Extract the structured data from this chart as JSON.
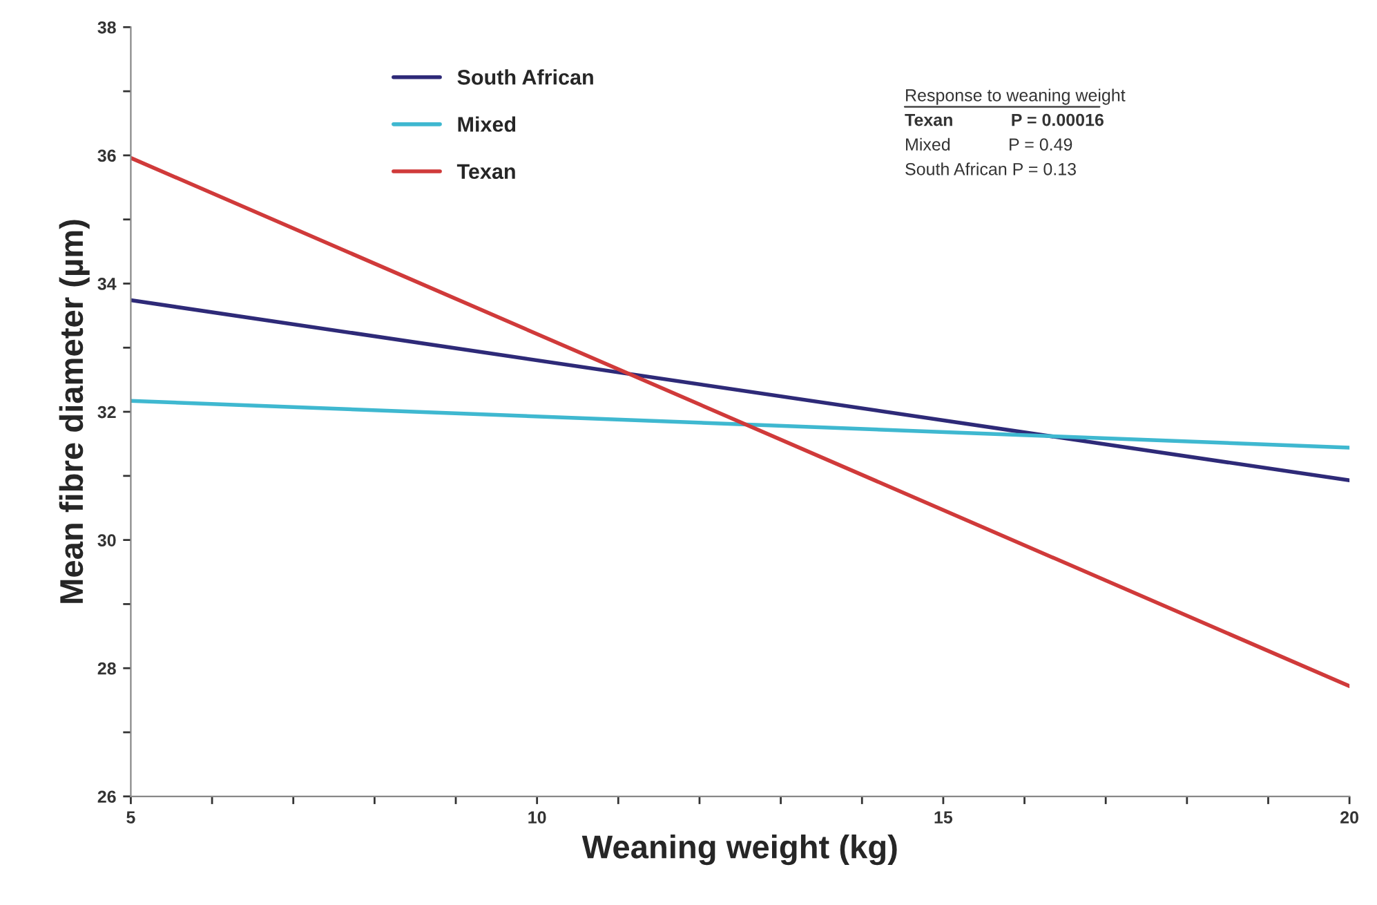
{
  "chart_data": {
    "type": "line",
    "xlabel": "Weaning weight (kg)",
    "ylabel": "Mean fibre diameter (µm)",
    "x": [
      5,
      20
    ],
    "series": [
      {
        "name": "South African",
        "color": "#2e2a78",
        "values": [
          33.74,
          30.93
        ]
      },
      {
        "name": "Mixed",
        "color": "#3fb8d0",
        "values": [
          32.17,
          31.44
        ]
      },
      {
        "name": "Texan",
        "color": "#d03a3a",
        "values": [
          35.96,
          27.72
        ]
      }
    ],
    "xlim": [
      5,
      20
    ],
    "ylim": [
      26,
      38
    ],
    "xticks": [
      5,
      {
        "value": 6,
        "label": null
      },
      {
        "value": 7,
        "label": null
      },
      {
        "value": 8,
        "label": null
      },
      {
        "value": 9,
        "label": null
      },
      10,
      {
        "value": 11,
        "label": null
      },
      {
        "value": 12,
        "label": null
      },
      {
        "value": 13,
        "label": null
      },
      {
        "value": 14,
        "label": null
      },
      15,
      {
        "value": 16,
        "label": null
      },
      {
        "value": 17,
        "label": null
      },
      {
        "value": 18,
        "label": null
      },
      {
        "value": 19,
        "label": null
      },
      20
    ],
    "yticks": [
      26,
      {
        "value": 27,
        "label": null
      },
      28,
      {
        "value": 29,
        "label": null
      },
      30,
      {
        "value": 31,
        "label": null
      },
      32,
      {
        "value": 33,
        "label": null
      },
      34,
      {
        "value": 35,
        "label": null
      },
      36,
      {
        "value": 37,
        "label": null
      },
      38
    ],
    "annotations": [
      "Response to weaning weight",
      "Texan            P = 0.00016",
      "Mixed            P = 0.49",
      "South African P = 0.13"
    ],
    "legend": "top",
    "grid": false,
    "marker": "none",
    "line_style": "solid"
  }
}
